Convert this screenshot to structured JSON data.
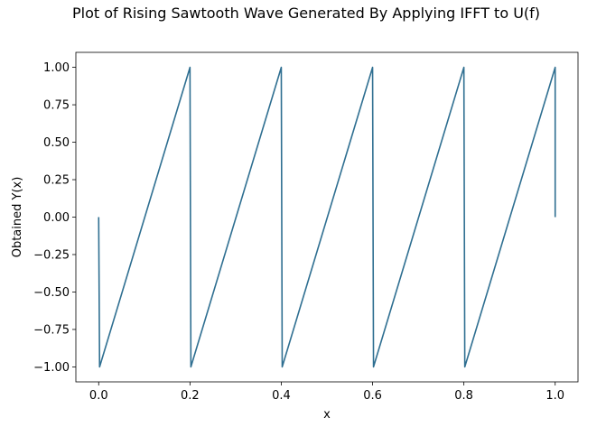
{
  "chart_data": {
    "type": "line",
    "title": "Plot of Rising Sawtooth Wave Generated By Applying IFFT to U(f)",
    "xlabel": "x",
    "ylabel": "Obtained Y(x)",
    "xlim": [
      -0.05,
      1.05
    ],
    "ylim": [
      -1.1,
      1.1
    ],
    "grid": false,
    "x_ticks": [
      0.0,
      0.2,
      0.4,
      0.6,
      0.8,
      1.0
    ],
    "x_tick_labels": [
      "0.0",
      "0.2",
      "0.4",
      "0.6",
      "0.8",
      "1.0"
    ],
    "y_ticks": [
      -1.0,
      -0.75,
      -0.5,
      -0.25,
      0.0,
      0.25,
      0.5,
      0.75,
      1.0
    ],
    "y_tick_labels": [
      "−1.00",
      "−0.75",
      "−0.50",
      "−0.25",
      "0.00",
      "0.25",
      "0.50",
      "0.75",
      "1.00"
    ],
    "series": [
      {
        "color": "#2f6f91",
        "x": [
          0.0,
          0.002,
          0.2,
          0.202,
          0.4,
          0.402,
          0.6,
          0.602,
          0.8,
          0.802,
          1.0,
          1.0
        ],
        "y": [
          0.0,
          -1.0,
          1.0,
          -1.0,
          1.0,
          -1.0,
          1.0,
          -1.0,
          1.0,
          -1.0,
          1.0,
          0.0
        ]
      }
    ]
  }
}
